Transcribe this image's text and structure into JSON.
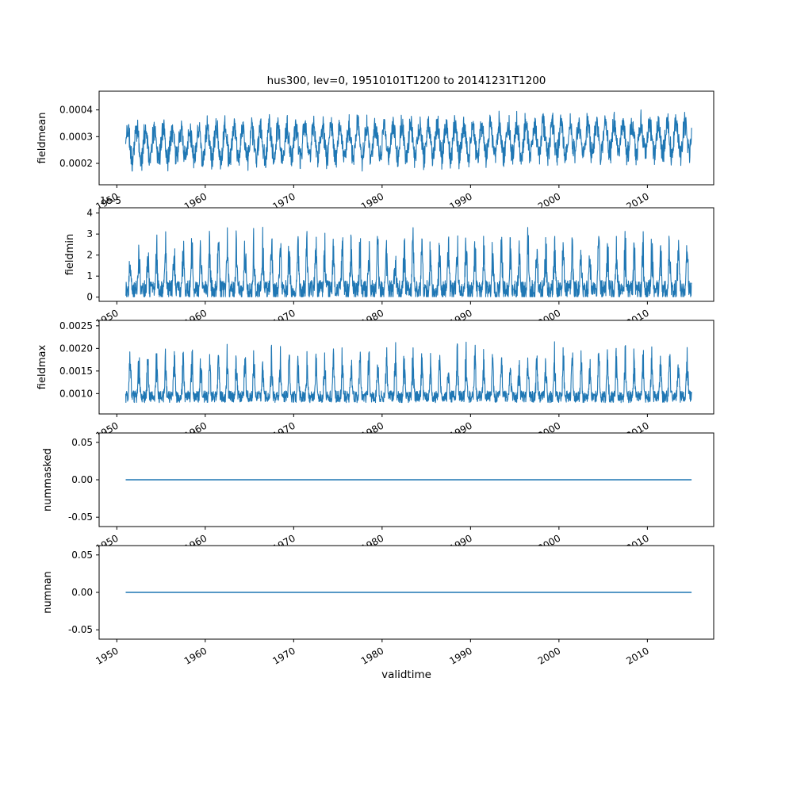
{
  "title": "hus300, lev=0, 19510101T1200 to 20141231T1200",
  "line_color": "#1f77b4",
  "x_axis": {
    "label": "validtime",
    "xlim": [
      1948.0,
      2017.5
    ],
    "ticks": [
      1950,
      1960,
      1970,
      1980,
      1990,
      2000,
      2010
    ],
    "tick_labels": [
      "1950",
      "1960",
      "1970",
      "1980",
      "1990",
      "2000",
      "2010"
    ],
    "data_start": 1951.0,
    "data_end": 2015.0
  },
  "chart_data": [
    {
      "type": "line",
      "name": "fieldmean",
      "ylabel": "fieldmean",
      "ylim": [
        0.00012,
        0.00047
      ],
      "yticks": [
        0.0002,
        0.0003,
        0.0004
      ],
      "ytick_labels": [
        "0.0002",
        "0.0003",
        "0.0004"
      ],
      "series": {
        "kind": "seasonal",
        "base": 0.00027,
        "amp": 7.5e-05,
        "noise": 4e-05,
        "trend": 4e-07,
        "points_per_year": 36,
        "seed": 11
      }
    },
    {
      "type": "line",
      "name": "fieldmin",
      "ylabel": "fieldmin",
      "offset_text": "1e-5",
      "ylim": [
        -2e-06,
        4.25e-05
      ],
      "yticks": [
        0,
        1e-05,
        2e-05,
        3e-05,
        4e-05
      ],
      "ytick_labels": [
        "0",
        "1",
        "2",
        "3",
        "4"
      ],
      "series": {
        "kind": "spiky",
        "base": 3.5e-06,
        "amp": 2.8e-05,
        "power": 2.5,
        "noise": 4.5e-06,
        "clamp_min": 2e-07,
        "points_per_year": 36,
        "seed": 22
      }
    },
    {
      "type": "line",
      "name": "fieldmax",
      "ylabel": "fieldmax",
      "ylim": [
        0.00055,
        0.00262
      ],
      "yticks": [
        0.001,
        0.0015,
        0.002,
        0.0025
      ],
      "ytick_labels": [
        "0.0010",
        "0.0015",
        "0.0020",
        "0.0025"
      ],
      "series": {
        "kind": "spiky",
        "base": 0.00093,
        "amp": 0.00115,
        "power": 3,
        "noise": 0.00013,
        "clamp_min": 0.0006,
        "points_per_year": 36,
        "seed": 33
      }
    },
    {
      "type": "line",
      "name": "nummasked",
      "ylabel": "nummasked",
      "ylim": [
        -0.0625,
        0.0625
      ],
      "yticks": [
        -0.05,
        0,
        0.05
      ],
      "ytick_labels": [
        "-0.05",
        "0.00",
        "0.05"
      ],
      "series": {
        "kind": "constant",
        "value": 0
      }
    },
    {
      "type": "line",
      "name": "numnan",
      "ylabel": "numnan",
      "ylim": [
        -0.0625,
        0.0625
      ],
      "yticks": [
        -0.05,
        0,
        0.05
      ],
      "ytick_labels": [
        "-0.05",
        "0.00",
        "0.05"
      ],
      "series": {
        "kind": "constant",
        "value": 0
      }
    }
  ]
}
